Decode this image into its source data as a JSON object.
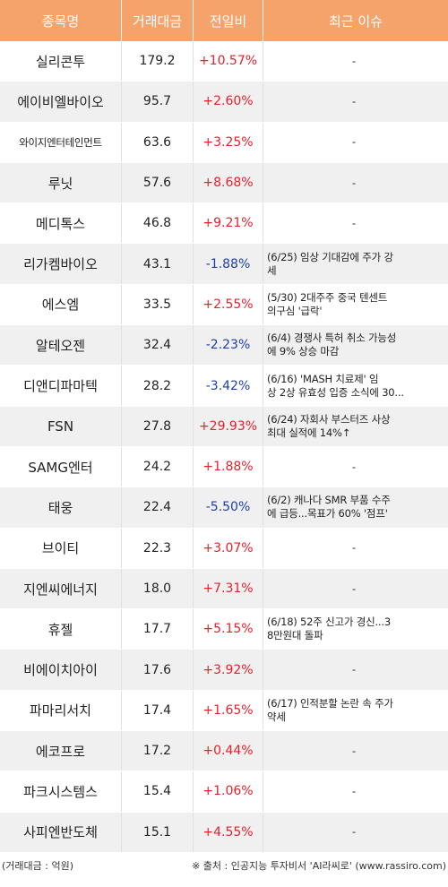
{
  "header": {
    "name": "종목명",
    "volume": "거래대금",
    "change": "전일비",
    "issue": "최근 이슈"
  },
  "rows": [
    {
      "name": "실리콘투",
      "volume": "179.2",
      "change": "+10.57%",
      "dir": "up",
      "issue": "-"
    },
    {
      "name": "에이비엘바이오",
      "volume": "95.7",
      "change": "+2.60%",
      "dir": "up",
      "issue": "-"
    },
    {
      "name": "와이지엔터테인먼트",
      "volume": "63.6",
      "change": "+3.25%",
      "dir": "up",
      "issue": "-"
    },
    {
      "name": "루닛",
      "volume": "57.6",
      "change": "+8.68%",
      "dir": "up",
      "issue": "-"
    },
    {
      "name": "메디톡스",
      "volume": "46.8",
      "change": "+9.21%",
      "dir": "up",
      "issue": "-"
    },
    {
      "name": "리가켐바이오",
      "volume": "43.1",
      "change": "-1.88%",
      "dir": "down",
      "issue": "(6/25) 임상 기대감에 주가 강\n세"
    },
    {
      "name": "에스엠",
      "volume": "33.5",
      "change": "+2.55%",
      "dir": "up",
      "issue": "(5/30) 2대주주 중국 텐센트\n의구심 '급락'"
    },
    {
      "name": "알테오젠",
      "volume": "32.4",
      "change": "-2.23%",
      "dir": "down",
      "issue": "(6/4) 경쟁사 특허 취소 가능성\n에 9% 상승 마감"
    },
    {
      "name": "디앤디파마텍",
      "volume": "28.2",
      "change": "-3.42%",
      "dir": "down",
      "issue": "(6/16) 'MASH 치료제' 임\n상 2상 유효성 입증 소식에 30..."
    },
    {
      "name": "FSN",
      "volume": "27.8",
      "change": "+29.93%",
      "dir": "up",
      "issue": "(6/24) 자회사 부스터즈 사상\n최대 실적에 14%↑"
    },
    {
      "name": "SAMG엔터",
      "volume": "24.2",
      "change": "+1.88%",
      "dir": "up",
      "issue": "-"
    },
    {
      "name": "태웅",
      "volume": "22.4",
      "change": "-5.50%",
      "dir": "down",
      "issue": "(6/2) 캐나다 SMR 부품 수주\n에 급등...목표가 60% '점프'"
    },
    {
      "name": "브이티",
      "volume": "22.3",
      "change": "+3.07%",
      "dir": "up",
      "issue": "-"
    },
    {
      "name": "지엔씨에너지",
      "volume": "18.0",
      "change": "+7.31%",
      "dir": "up",
      "issue": "-"
    },
    {
      "name": "휴젤",
      "volume": "17.7",
      "change": "+5.15%",
      "dir": "up",
      "issue": "(6/18) 52주 신고가 경신...3\n8만원대 돌파"
    },
    {
      "name": "비에이치아이",
      "volume": "17.6",
      "change": "+3.92%",
      "dir": "up",
      "issue": "-"
    },
    {
      "name": "파마리서치",
      "volume": "17.4",
      "change": "+1.65%",
      "dir": "up",
      "issue": "(6/17) 인적분할 논란 속 주가\n 약세"
    },
    {
      "name": "에코프로",
      "volume": "17.2",
      "change": "+0.44%",
      "dir": "up",
      "issue": "-"
    },
    {
      "name": "파크시스템스",
      "volume": "15.4",
      "change": "+1.06%",
      "dir": "up",
      "issue": "-"
    },
    {
      "name": "사피엔반도체",
      "volume": "15.1",
      "change": "+4.55%",
      "dir": "up",
      "issue": "-"
    }
  ],
  "footer": {
    "unit": "(거래대금 : 억원)",
    "source": "※ 출처 : 인공지능 투자비서 'AI라씨로' (www.rassiro.com)"
  },
  "colors": {
    "header_bg": "#f5a36b",
    "up": "#e8202a",
    "down": "#1e3fa8",
    "row_alt": "#f0f0f0"
  }
}
